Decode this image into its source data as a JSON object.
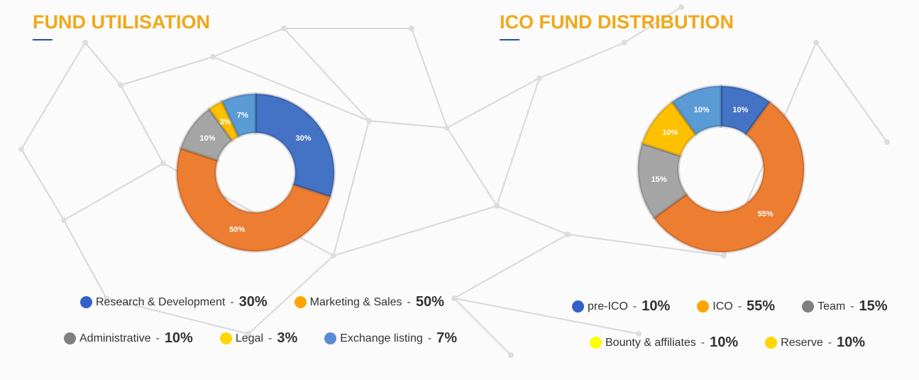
{
  "chart_data": [
    {
      "type": "pie",
      "title": "FUND UTILISATION",
      "donut": true,
      "categories": [
        "Research & Development",
        "Marketing & Sales",
        "Administrative",
        "Legal",
        "Exchange listing"
      ],
      "values": [
        30,
        50,
        10,
        3,
        7
      ],
      "labels": [
        "30%",
        "50%",
        "10%",
        "3%",
        "7%"
      ],
      "colors": [
        "#4472c4",
        "#ed7d31",
        "#a5a5a5",
        "#ffc000",
        "#5b9bd5"
      ],
      "legend_colors": [
        "#3461c9",
        "#ffa500",
        "#808080",
        "#ffd700",
        "#5a8bd6"
      ],
      "legend_values": [
        "30%",
        "50%",
        "10%",
        "3%",
        "7%"
      ]
    },
    {
      "type": "pie",
      "title": "ICO FUND DISTRIBUTION",
      "donut": true,
      "categories": [
        "pre-ICO",
        "ICO",
        "Team",
        "Bounty & affiliates",
        "Reserve"
      ],
      "values": [
        10,
        55,
        15,
        10,
        10
      ],
      "labels": [
        "10%",
        "55%",
        "15%",
        "10%",
        "10%"
      ],
      "colors": [
        "#4472c4",
        "#ed7d31",
        "#a5a5a5",
        "#ffc000",
        "#5b9bd5"
      ],
      "legend_colors": [
        "#3461c9",
        "#ffa500",
        "#808080",
        "#ffff00",
        "#ffd700"
      ],
      "legend_values": [
        "10%",
        "55%",
        "15%",
        "10%",
        "10%"
      ]
    }
  ]
}
